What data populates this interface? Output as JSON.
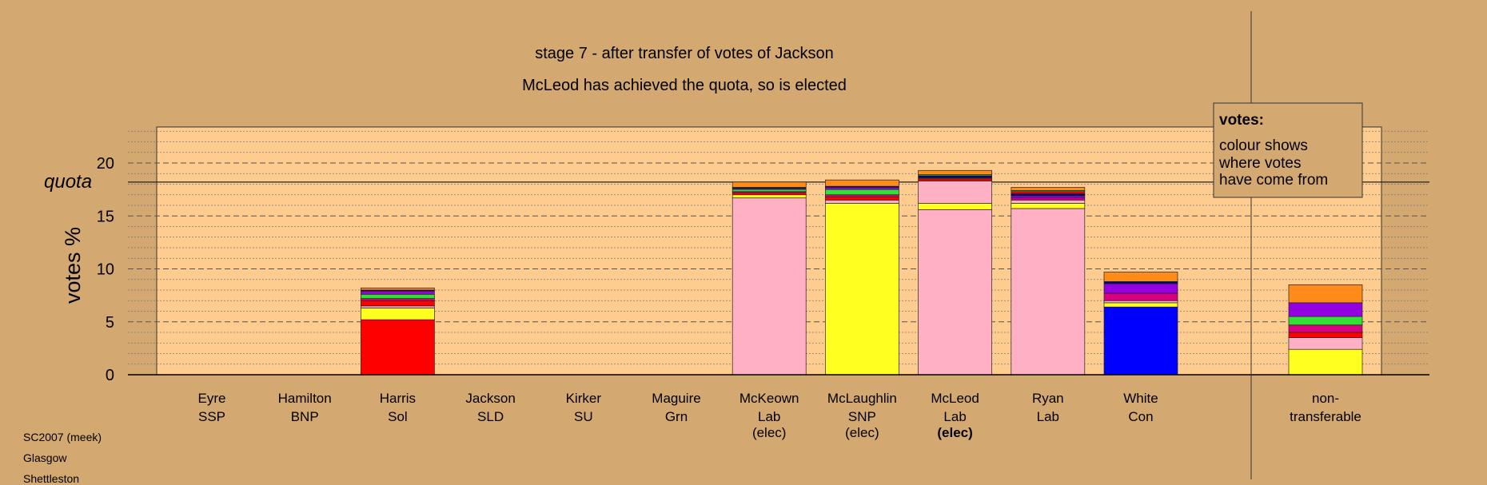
{
  "page": {
    "title": "stage 7 - after transfer of votes of Jackson",
    "subtitle": "McLeod has achieved the quota, so is elected",
    "footer": [
      "SC2007 (meek)",
      "Glasgow",
      "Shettleston"
    ]
  },
  "legend": {
    "heading": "votes:",
    "lines": [
      "colour shows",
      "where votes",
      "have come from"
    ]
  },
  "colors": {
    "background": "#d4a871",
    "plot_background": "#ffcc8f",
    "Lab": "#ffb0c4",
    "SNP": "#ffff20",
    "Sol": "#ff0000",
    "Con": "#0000ff",
    "SSP": "#ff8c1a",
    "Grn": "#33e033",
    "SU": "#9400e0",
    "SLD": "#d80080",
    "BNP": "#000080",
    "misc": "#8b4000"
  },
  "chart_data": {
    "type": "bar",
    "stacked": true,
    "ylabel": "votes %",
    "ylim": [
      0,
      23.4
    ],
    "yticks": [
      0,
      5,
      10,
      15,
      20
    ],
    "quota": 18.2,
    "quota_label": "quota",
    "grid": "dashed horizontal lines",
    "legend_position": "top-right",
    "categories": [
      {
        "name": "Eyre",
        "party": "SSP",
        "status": "",
        "segments": []
      },
      {
        "name": "Hamilton",
        "party": "BNP",
        "status": "",
        "segments": []
      },
      {
        "name": "Harris",
        "party": "Sol",
        "status": "",
        "segments": [
          {
            "from": "Sol",
            "value": 5.2
          },
          {
            "from": "SNP",
            "value": 1.1
          },
          {
            "from": "Lab",
            "value": 0.2
          },
          {
            "from": "Sol",
            "value": 0.5
          },
          {
            "from": "SLD",
            "value": 0.2
          },
          {
            "from": "Grn",
            "value": 0.4
          },
          {
            "from": "SU",
            "value": 0.3
          },
          {
            "from": "BNP",
            "value": 0.1
          },
          {
            "from": "SSP",
            "value": 0.2
          }
        ]
      },
      {
        "name": "Jackson",
        "party": "SLD",
        "status": "",
        "segments": []
      },
      {
        "name": "Kirker",
        "party": "SU",
        "status": "",
        "segments": []
      },
      {
        "name": "Maguire",
        "party": "Grn",
        "status": "",
        "segments": []
      },
      {
        "name": "McKeown",
        "party": "Lab",
        "status": "(elec)",
        "segments": [
          {
            "from": "Lab",
            "value": 16.7
          },
          {
            "from": "SNP",
            "value": 0.3
          },
          {
            "from": "Sol",
            "value": 0.2
          },
          {
            "from": "SLD",
            "value": 0.1
          },
          {
            "from": "Grn",
            "value": 0.2
          },
          {
            "from": "SU",
            "value": 0.1
          },
          {
            "from": "BNP",
            "value": 0.1
          },
          {
            "from": "SSP",
            "value": 0.5
          }
        ]
      },
      {
        "name": "McLaughlin",
        "party": "SNP",
        "status": "(elec)",
        "segments": [
          {
            "from": "SNP",
            "value": 16.2
          },
          {
            "from": "Lab",
            "value": 0.3
          },
          {
            "from": "Sol",
            "value": 0.3
          },
          {
            "from": "SLD",
            "value": 0.2
          },
          {
            "from": "Grn",
            "value": 0.5
          },
          {
            "from": "SU",
            "value": 0.2
          },
          {
            "from": "BNP",
            "value": 0.1
          },
          {
            "from": "SSP",
            "value": 0.6
          }
        ]
      },
      {
        "name": "McLeod",
        "party": "Lab",
        "status": "(elec)",
        "segments": [
          {
            "from": "Lab",
            "value": 15.6
          },
          {
            "from": "SNP",
            "value": 0.6
          },
          {
            "from": "Lab",
            "value": 2.1
          },
          {
            "from": "Sol",
            "value": 0.2
          },
          {
            "from": "misc",
            "value": 0.1
          },
          {
            "from": "BNP",
            "value": 0.2
          },
          {
            "from": "Grn",
            "value": 0.1
          },
          {
            "from": "SSP",
            "value": 0.4
          }
        ]
      },
      {
        "name": "Ryan",
        "party": "Lab",
        "status": "",
        "segments": [
          {
            "from": "Lab",
            "value": 15.7
          },
          {
            "from": "SNP",
            "value": 0.5
          },
          {
            "from": "Lab",
            "value": 0.3
          },
          {
            "from": "SLD",
            "value": 0.2
          },
          {
            "from": "SU",
            "value": 0.2
          },
          {
            "from": "BNP",
            "value": 0.2
          },
          {
            "from": "Sol",
            "value": 0.2
          },
          {
            "from": "Grn",
            "value": 0.1
          },
          {
            "from": "SSP",
            "value": 0.3
          }
        ]
      },
      {
        "name": "White",
        "party": "Con",
        "status": "",
        "segments": [
          {
            "from": "Con",
            "value": 6.4
          },
          {
            "from": "SNP",
            "value": 0.4
          },
          {
            "from": "Lab",
            "value": 0.2
          },
          {
            "from": "SLD",
            "value": 0.7
          },
          {
            "from": "SU",
            "value": 0.9
          },
          {
            "from": "BNP",
            "value": 0.2
          },
          {
            "from": "SSP",
            "value": 0.9
          }
        ]
      }
    ],
    "non_transferable": {
      "label": [
        "non-",
        "transferable"
      ],
      "segments": [
        {
          "from": "SNP",
          "value": 2.4
        },
        {
          "from": "Lab",
          "value": 1.1
        },
        {
          "from": "Sol",
          "value": 0.5
        },
        {
          "from": "SLD",
          "value": 0.7
        },
        {
          "from": "Grn",
          "value": 0.8
        },
        {
          "from": "SU",
          "value": 1.3
        },
        {
          "from": "SSP",
          "value": 1.7
        }
      ]
    }
  }
}
